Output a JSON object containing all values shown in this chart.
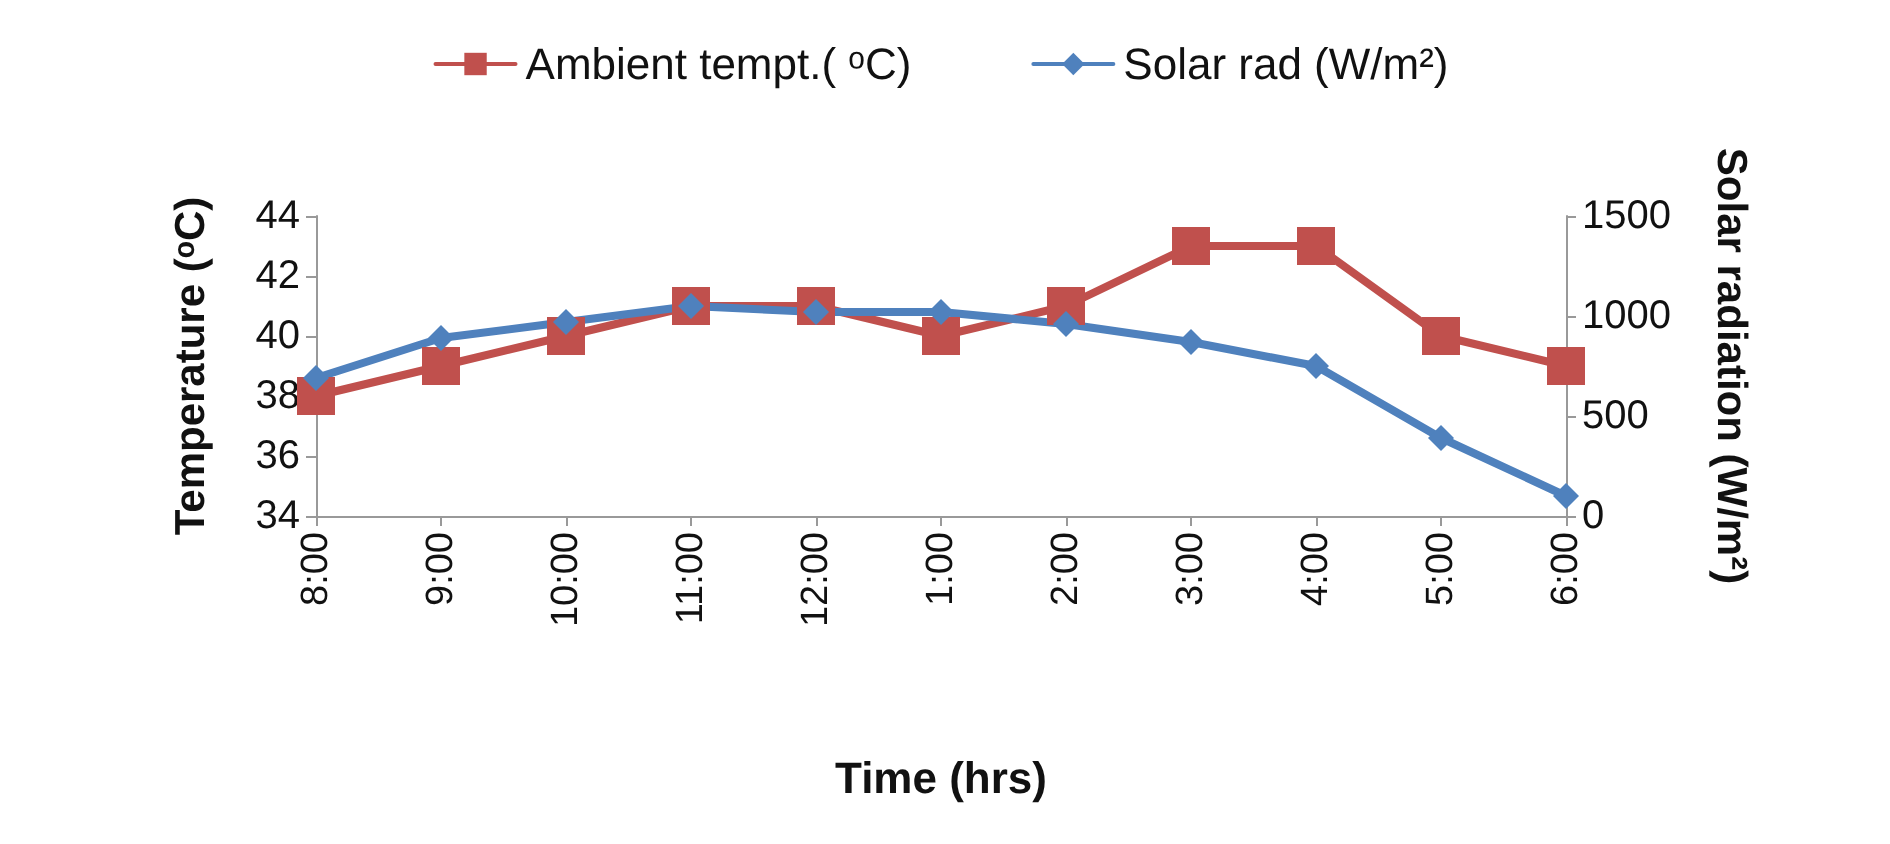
{
  "chart_data": {
    "type": "line",
    "xlabel": "Time (hrs)",
    "ylabel": "Temperature (ᵒC)",
    "y2label": "Solar radiation (W/m²)",
    "categories": [
      "8:00",
      "9:00",
      "10:00",
      "11:00",
      "12:00",
      "1:00",
      "2:00",
      "3:00",
      "4:00",
      "5:00",
      "6:00"
    ],
    "series": [
      {
        "name": "Ambient tempt.( ᵒC)",
        "color": "#c0504d",
        "marker": "square",
        "values": [
          38,
          39,
          40,
          41,
          41,
          40,
          41,
          43,
          43,
          40,
          39
        ]
      },
      {
        "name": "Solar rad (W/m²)",
        "color": "#4f81bd",
        "marker": "diamond",
        "axis": "y2",
        "values": [
          690,
          890,
          970,
          1050,
          1020,
          1020,
          960,
          870,
          750,
          390,
          100
        ]
      }
    ],
    "ylim": [
      34,
      44
    ],
    "yticks": [
      34,
      36,
      38,
      40,
      42,
      44
    ],
    "y2lim": [
      0,
      1500
    ],
    "y2ticks": [
      0,
      500,
      1000,
      1500
    ],
    "grid": false,
    "legend": "top",
    "line_style": "solid"
  }
}
